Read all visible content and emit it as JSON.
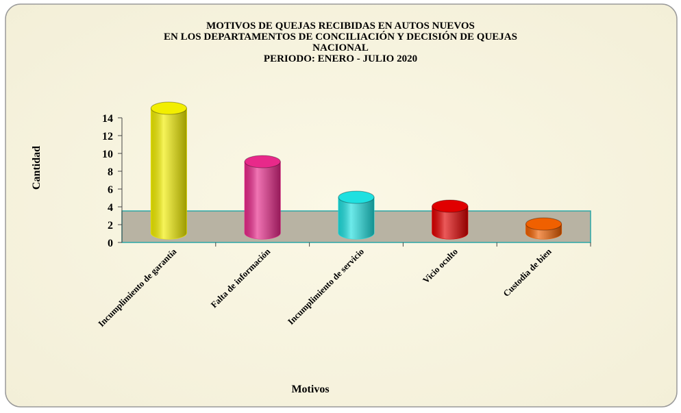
{
  "chart_data": {
    "type": "bar3d",
    "title": [
      "MOTIVOS DE QUEJAS RECIBIDAS EN AUTOS NUEVOS",
      "EN LOS DEPARTAMENTOS DE CONCILIACIÓN Y DECISIÓN DE QUEJAS",
      "NACIONAL",
      "PERIODO: ENERO - JULIO 2020"
    ],
    "y_label": "Cantidad",
    "x_label": "Motivos",
    "categories": [
      "Incumplimiento de garantía",
      "Falta de información",
      "Incumplimiento de servicio",
      "Vicio oculto",
      "Custodia de bien"
    ],
    "values": [
      14,
      8,
      4,
      3,
      1
    ],
    "colors": [
      "#f2ee00",
      "#e8298a",
      "#1fe0e0",
      "#e00000",
      "#f06000"
    ],
    "ylim": [
      0,
      14
    ],
    "yticks": [
      0,
      2,
      4,
      6,
      8,
      10,
      12,
      14
    ]
  }
}
